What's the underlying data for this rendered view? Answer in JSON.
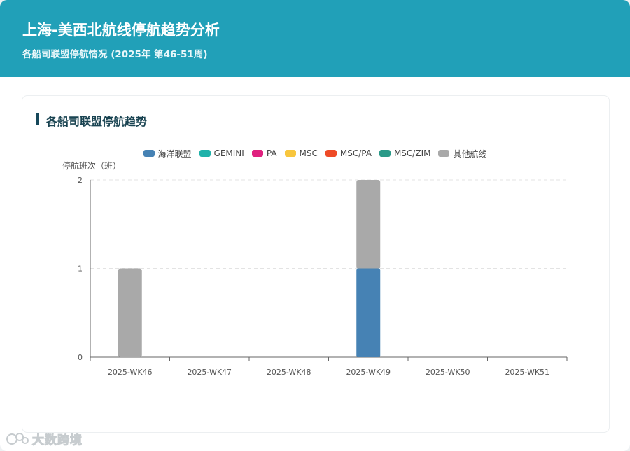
{
  "header": {
    "title": "上海-美西北航线停航趋势分析",
    "subtitle": "各船司联盟停航情况 (2025年 第46-51周)"
  },
  "card": {
    "title": "各船司联盟停航趋势"
  },
  "watermark": {
    "text": "大数跨境"
  },
  "colors": {
    "header_bg": "#21a0b8",
    "title_accent": "#16485a"
  },
  "chart_data": {
    "type": "bar",
    "stacked": true,
    "categories": [
      "2025-WK46",
      "2025-WK47",
      "2025-WK48",
      "2025-WK49",
      "2025-WK50",
      "2025-WK51"
    ],
    "ylabel": "停航班次（班）",
    "ylim": [
      0,
      2
    ],
    "yticks": [
      "0",
      "1",
      "2"
    ],
    "grid": true,
    "legend_position": "top-center",
    "series": [
      {
        "name": "海洋联盟",
        "color": "#4682b4",
        "values": [
          0,
          0,
          0,
          1,
          0,
          0
        ]
      },
      {
        "name": "GEMINI",
        "color": "#20b2aa",
        "values": [
          0,
          0,
          0,
          0,
          0,
          0
        ]
      },
      {
        "name": "PA",
        "color": "#e0217f",
        "values": [
          0,
          0,
          0,
          0,
          0,
          0
        ]
      },
      {
        "name": "MSC",
        "color": "#f8c63d",
        "values": [
          0,
          0,
          0,
          0,
          0,
          0
        ]
      },
      {
        "name": "MSC/PA",
        "color": "#ee4a26",
        "values": [
          0,
          0,
          0,
          0,
          0,
          0
        ]
      },
      {
        "name": "MSC/ZIM",
        "color": "#2a9a88",
        "values": [
          0,
          0,
          0,
          0,
          0,
          0
        ]
      },
      {
        "name": "其他航线",
        "color": "#a9a9a9",
        "values": [
          1,
          0,
          0,
          1,
          0,
          0
        ]
      }
    ]
  }
}
